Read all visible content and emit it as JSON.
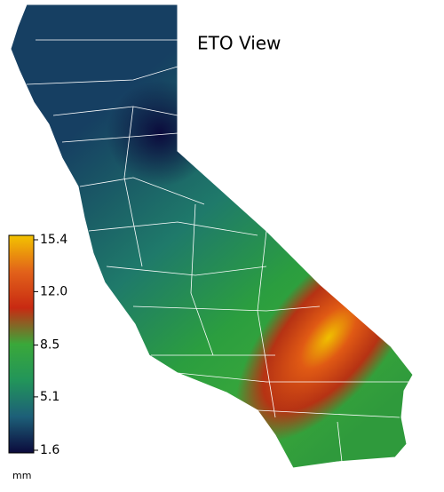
{
  "title": "ETO View",
  "colorbar": {
    "unit": "mm",
    "range": [
      1.6,
      15.4
    ],
    "ticks": [
      15.4,
      {
        "value": 12,
        "label": "12.0"
      },
      8.5,
      5.1,
      1.6
    ],
    "colors": [
      "#0b0a3c",
      "#1d5f78",
      "#22955a",
      "#3aa83a",
      "#c82a12",
      "#e2621a",
      "#f3c300"
    ]
  }
}
